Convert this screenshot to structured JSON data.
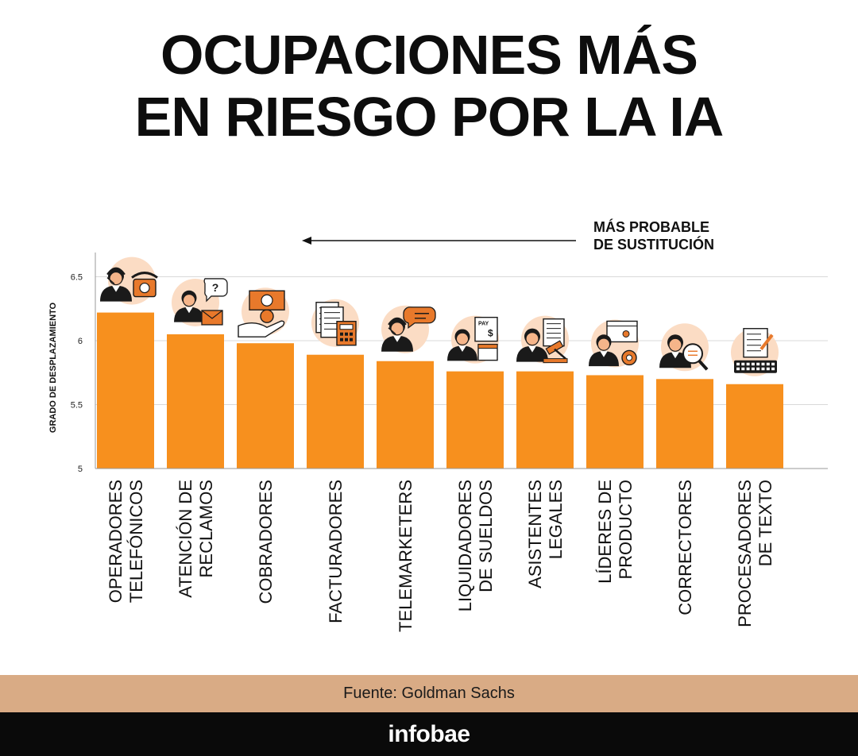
{
  "title_line1": "OCUPACIONES MÁS",
  "title_line2": "EN RIESGO POR LA IA",
  "source": "Fuente: Goldman Sachs",
  "brand": "infobae",
  "colors": {
    "bar": "#f7901e",
    "icon_bg": "#fbdcc4",
    "grid": "#d9d9d9",
    "band": "#d9ab85",
    "footer": "#0a0a0a"
  },
  "chart_data": {
    "type": "bar",
    "title": "OCUPACIONES MÁS EN RIESGO POR LA IA",
    "ylabel": "GRADO DE DESPLAZAMIENTO",
    "xlabel": "",
    "ylim": [
      5,
      6.6
    ],
    "yticks": [
      "6.5",
      "6",
      "5.5",
      "5"
    ],
    "annotation": [
      "MÁS PROBABLE",
      "DE SUSTITUCIÓN"
    ],
    "grid": true,
    "categories": [
      [
        "OPERADORES",
        "TELEFÓNICOS"
      ],
      [
        "ATENCIÓN DE",
        "RECLAMOS"
      ],
      [
        "COBRADORES"
      ],
      [
        "FACTURADORES"
      ],
      [
        "TELEMARKETERS"
      ],
      [
        "LIQUIDADORES",
        "DE SUELDOS"
      ],
      [
        "ASISTENTES",
        "LEGALES"
      ],
      [
        "LÍDERES DE",
        "PRODUCTO"
      ],
      [
        "CORRECTORES"
      ],
      [
        "PROCESADORES",
        "DE TEXTO"
      ]
    ],
    "values": [
      6.22,
      6.05,
      5.98,
      5.89,
      5.84,
      5.76,
      5.76,
      5.73,
      5.7,
      5.66
    ],
    "icons": [
      "headset-phone-icon",
      "customer-question-icon",
      "money-hand-icon",
      "invoice-calculator-icon",
      "headset-chat-icon",
      "payroll-calendar-icon",
      "lawyer-gavel-icon",
      "product-leader-gear-icon",
      "proofreader-magnifier-icon",
      "document-keyboard-icon"
    ]
  }
}
